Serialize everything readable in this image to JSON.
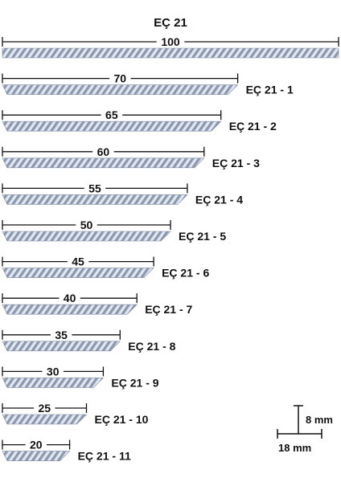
{
  "title": "EÇ 21",
  "colors": {
    "line": "#111111",
    "strip_light": "#e3e8f0",
    "strip_dark": "#8a97ad",
    "background": "#ffffff"
  },
  "products": [
    {
      "code": "",
      "length": "100"
    },
    {
      "code": "EÇ 21 - 1",
      "length": "70"
    },
    {
      "code": "EÇ 21 - 2",
      "length": "65"
    },
    {
      "code": "EÇ 21 - 3",
      "length": "60"
    },
    {
      "code": "EÇ 21 - 4",
      "length": "55"
    },
    {
      "code": "EÇ 21 - 5",
      "length": "50"
    },
    {
      "code": "EÇ 21 - 6",
      "length": "45"
    },
    {
      "code": "EÇ 21 - 7",
      "length": "40"
    },
    {
      "code": "EÇ 21 - 8",
      "length": "35"
    },
    {
      "code": "EÇ 21 - 9",
      "length": "30"
    },
    {
      "code": "EÇ 21 - 10",
      "length": "25"
    },
    {
      "code": "EÇ 21 - 11",
      "length": "20"
    }
  ],
  "scale_legend": {
    "height_label": "8 mm",
    "width_label": "18 mm"
  }
}
